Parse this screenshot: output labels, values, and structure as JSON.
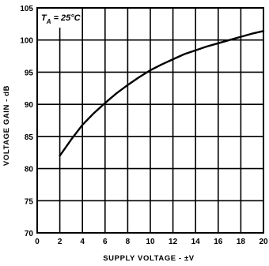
{
  "chart_data": {
    "type": "line",
    "title": "",
    "xlabel": "SUPPLY VOLTAGE - ±V",
    "ylabel": "VOLTAGE GAIN - dB",
    "xlim": [
      0,
      20
    ],
    "ylim": [
      70,
      105
    ],
    "x_ticks": [
      0,
      2,
      4,
      6,
      8,
      10,
      12,
      14,
      16,
      18,
      20
    ],
    "y_ticks": [
      70,
      75,
      80,
      85,
      90,
      95,
      100,
      105
    ],
    "grid": true,
    "legend": "none",
    "annotation": {
      "main": "T",
      "sub": "A",
      "rest": " = 25°C"
    },
    "series": [
      {
        "x": [
          2,
          3,
          4,
          5,
          6,
          7,
          8,
          9,
          10,
          11,
          12,
          13,
          14,
          15,
          16,
          17,
          18,
          19,
          20
        ],
        "y": [
          82,
          84.5,
          86.8,
          88.6,
          90.2,
          91.7,
          93,
          94.2,
          95.3,
          96.2,
          97,
          97.8,
          98.4,
          99,
          99.5,
          100,
          100.5,
          101,
          101.4
        ]
      }
    ],
    "colors": {
      "line": "#000000",
      "grid": "#000000",
      "background": "#ffffff"
    }
  }
}
